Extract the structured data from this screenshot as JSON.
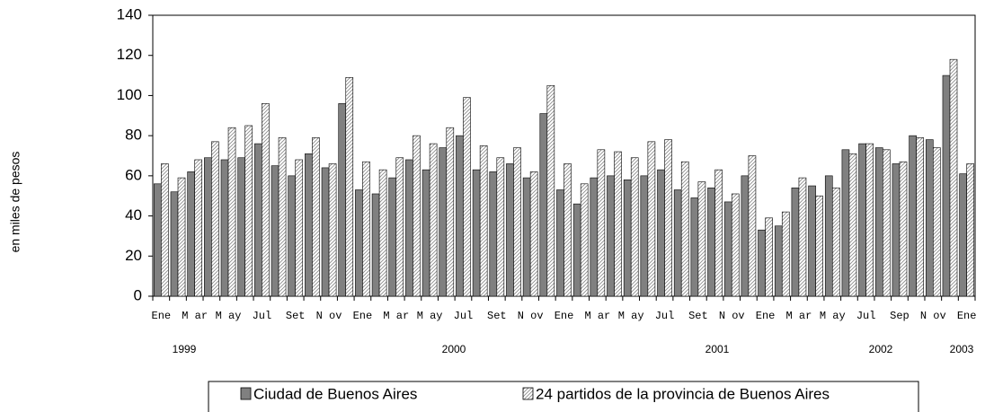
{
  "chart_data": {
    "type": "bar",
    "y_label": "en miles de pesos",
    "categories": [
      "Ene",
      null,
      "M ar",
      null,
      "M ay",
      null,
      "Jul",
      null,
      "Set",
      null,
      "N ov",
      null,
      "Ene",
      null,
      "M ar",
      null,
      "M ay",
      null,
      "Jul",
      null,
      "Set",
      null,
      "N ov",
      null,
      "Ene",
      null,
      "M ar",
      null,
      "M ay",
      null,
      "Jul",
      null,
      "Set",
      null,
      "N ov",
      null,
      "Ene",
      null,
      "M ar",
      null,
      "M ay",
      null,
      "Jul",
      null,
      "Sep",
      null,
      "N ov",
      null,
      "Ene"
    ],
    "year_labels": [
      "1999",
      "2000",
      "2001",
      "2002",
      "2003"
    ],
    "series": [
      {
        "name": "Ciudad de Buenos Aires",
        "color": "#808080",
        "hatch": false,
        "values": [
          56,
          52,
          62,
          69,
          68,
          69,
          76,
          65,
          60,
          71,
          64,
          96,
          53,
          51,
          59,
          68,
          63,
          74,
          80,
          63,
          62,
          66,
          59,
          91,
          53,
          46,
          59,
          60,
          58,
          60,
          63,
          53,
          49,
          54,
          47,
          60,
          33,
          35,
          54,
          55,
          60,
          73,
          76,
          74,
          66,
          80,
          78,
          110,
          61
        ]
      },
      {
        "name": "24 partidos de la provincia de Buenos Aires",
        "color": "#ffffff",
        "hatch": true,
        "values": [
          66,
          59,
          68,
          77,
          84,
          85,
          96,
          79,
          68,
          79,
          66,
          109,
          67,
          63,
          69,
          80,
          76,
          84,
          99,
          75,
          69,
          74,
          62,
          105,
          66,
          56,
          73,
          72,
          69,
          77,
          78,
          67,
          57,
          63,
          51,
          70,
          39,
          42,
          59,
          50,
          54,
          71,
          76,
          73,
          67,
          79,
          74,
          118,
          66
        ]
      }
    ],
    "ylim": [
      0,
      140
    ],
    "yticks": [
      0,
      20,
      40,
      60,
      80,
      100,
      120,
      140
    ],
    "grid": false
  }
}
